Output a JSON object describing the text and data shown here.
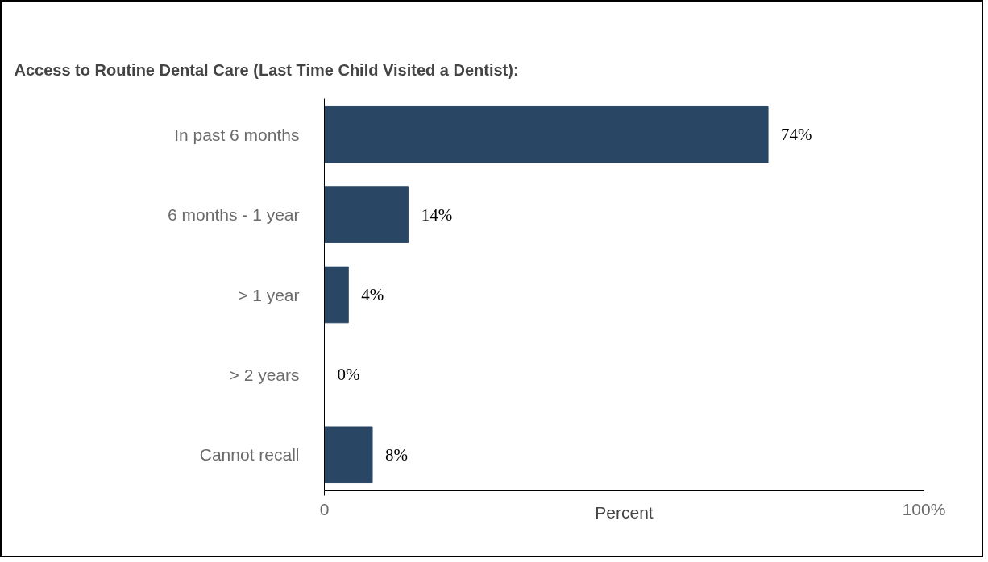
{
  "chart_data": {
    "type": "bar",
    "orientation": "horizontal",
    "title": "Access to Routine Dental Care (Last Time Child Visited a Dentist):",
    "categories": [
      "In past 6 months",
      "6 months - 1 year",
      "> 1 year",
      "> 2 years",
      "Cannot recall"
    ],
    "values": [
      74,
      14,
      4,
      0,
      8
    ],
    "value_labels": [
      "74%",
      "14%",
      "4%",
      "0%",
      "8%"
    ],
    "color": "#2a4665",
    "xlabel": "Percent",
    "xlim": [
      0,
      100
    ],
    "xticks": [
      0,
      {
        "value": 100,
        "label": "100%"
      }
    ],
    "grid": false
  }
}
